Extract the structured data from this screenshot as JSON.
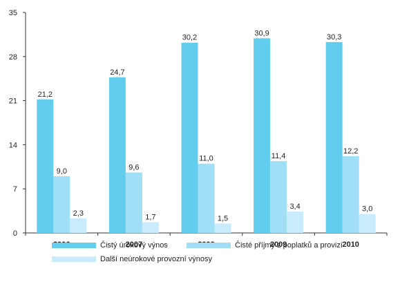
{
  "chart_data": {
    "type": "bar",
    "categories": [
      "2006",
      "2007",
      "2008",
      "2009",
      "2010"
    ],
    "series": [
      {
        "name": "Čistý úrokový výnos",
        "values": [
          21.2,
          24.7,
          30.2,
          30.9,
          30.3
        ],
        "labels": [
          "21,2",
          "24,7",
          "30,2",
          "30,9",
          "30,3"
        ],
        "color": "#63cdee"
      },
      {
        "name": "Čisté příjmy z poplatků a provizí",
        "values": [
          9.0,
          9.6,
          11.0,
          11.4,
          12.2
        ],
        "labels": [
          "9,0",
          "9,6",
          "11,0",
          "11,4",
          "12,2"
        ],
        "color": "#a0dff6"
      },
      {
        "name": "Další neúrokové provozní výnosy",
        "values": [
          2.3,
          1.7,
          1.5,
          3.4,
          3.0
        ],
        "labels": [
          "2,3",
          "1,7",
          "1,5",
          "3,4",
          "3,0"
        ],
        "color": "#c8ecfb"
      }
    ],
    "y_ticks": [
      "0",
      "7",
      "14",
      "21",
      "28",
      "35"
    ],
    "ylim": [
      0,
      35
    ],
    "grid": false,
    "legend_position": "bottom"
  }
}
